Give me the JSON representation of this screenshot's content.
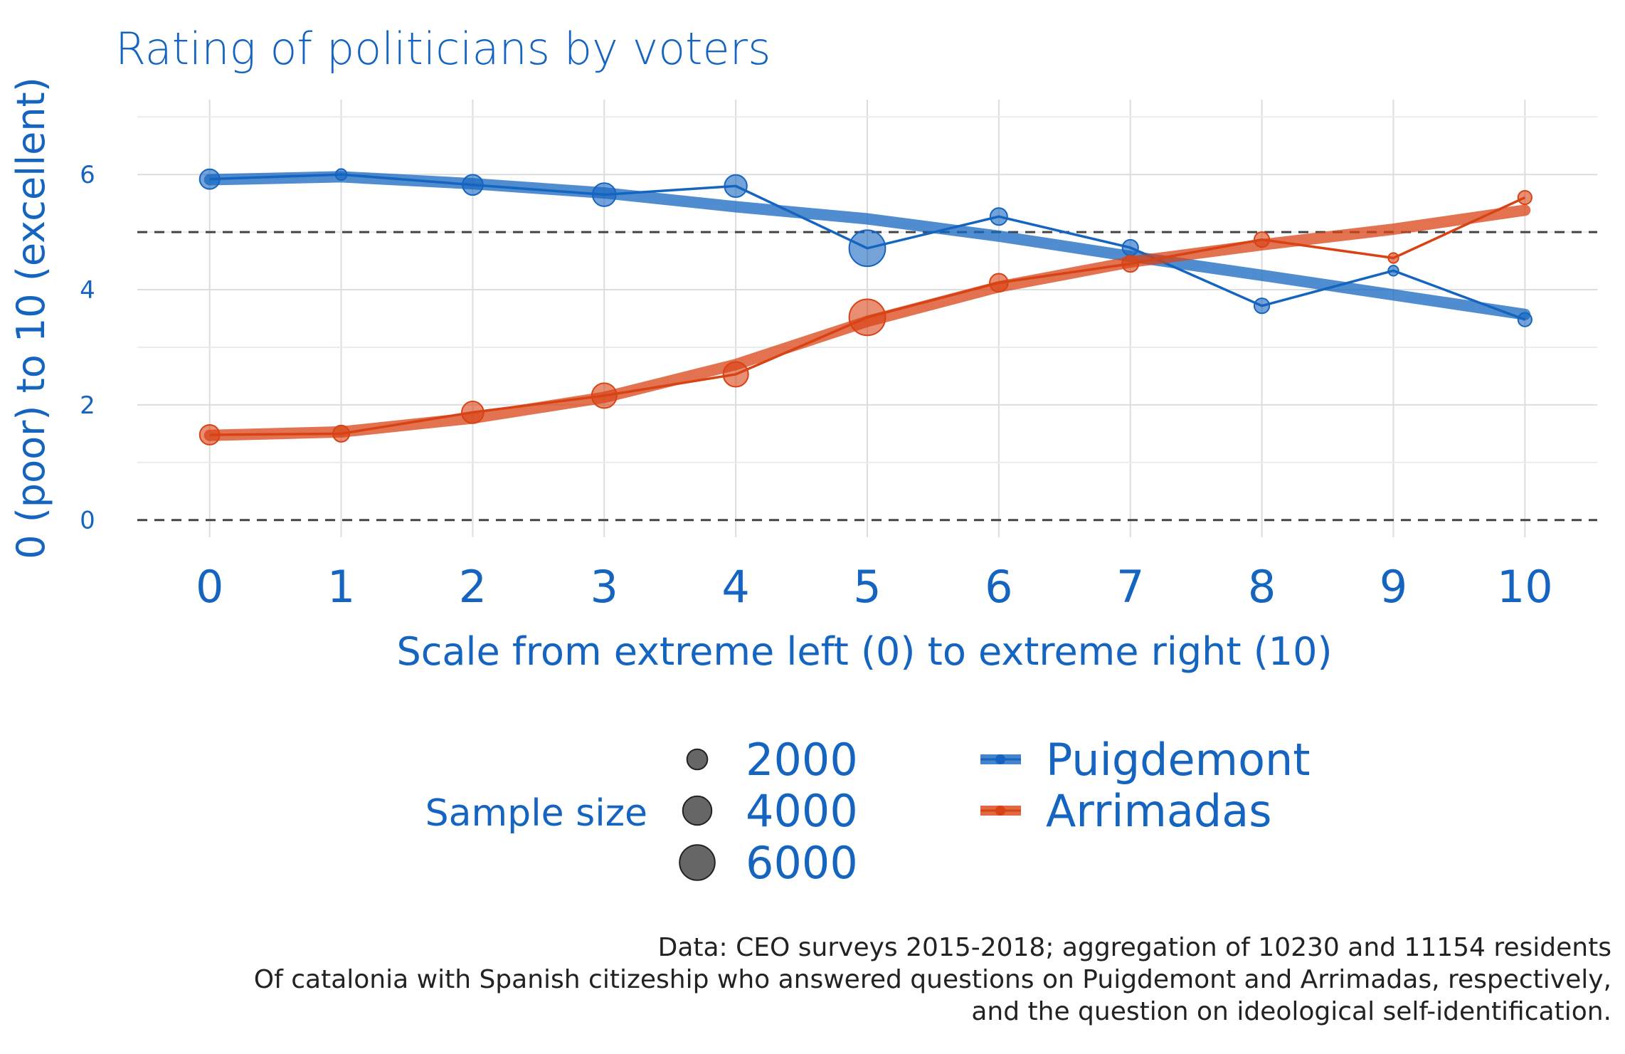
{
  "chart_data": {
    "type": "line",
    "title": "Rating of politicians by voters",
    "xlabel": "Scale from extreme left (0) to extreme right (10)",
    "ylabel": "0 (poor) to 10 (excellent)",
    "xlim": [
      -0.55,
      10.55
    ],
    "ylim": [
      -0.3,
      7.3
    ],
    "x_ticks": [
      "0",
      "1",
      "2",
      "3",
      "4",
      "5",
      "6",
      "7",
      "8",
      "9",
      "10"
    ],
    "y_ticks": [
      "0",
      "2",
      "4",
      "6"
    ],
    "reference_lines": [
      0,
      5
    ],
    "grid": true,
    "x": [
      0,
      1,
      2,
      3,
      4,
      5,
      6,
      7,
      8,
      9,
      10
    ],
    "series": [
      {
        "name": "Puigdemont",
        "color": "#1565C0",
        "values": [
          5.92,
          6.0,
          5.82,
          5.65,
          5.8,
          4.72,
          5.27,
          4.73,
          3.72,
          4.33,
          3.48
        ],
        "trend": [
          5.91,
          5.96,
          5.84,
          5.68,
          5.44,
          5.23,
          4.93,
          4.58,
          4.25,
          3.91,
          3.57
        ],
        "sample_size": [
          1900,
          600,
          2000,
          2600,
          2400,
          6300,
          1400,
          1200,
          1100,
          500,
          900
        ]
      },
      {
        "name": "Arrimadas",
        "color": "#D84315",
        "values": [
          1.48,
          1.5,
          1.87,
          2.16,
          2.53,
          3.52,
          4.12,
          4.45,
          4.87,
          4.55,
          5.6
        ],
        "trend": [
          1.47,
          1.53,
          1.77,
          2.13,
          2.7,
          3.45,
          4.05,
          4.48,
          4.78,
          5.05,
          5.38
        ],
        "sample_size": [
          1900,
          1300,
          2300,
          3000,
          3000,
          6300,
          1600,
          1300,
          1100,
          500,
          900
        ]
      }
    ],
    "legend": {
      "placement": "bottom",
      "size_title": "Sample size",
      "size_breaks": [
        {
          "value": 2000,
          "label": "2000"
        },
        {
          "value": 4000,
          "label": "4000"
        },
        {
          "value": 6000,
          "label": "6000"
        }
      ],
      "color_entries": [
        "Puigdemont",
        "Arrimadas"
      ]
    },
    "caption": [
      "Data: CEO surveys 2015-2018; aggregation of 10230 and 11154 residents",
      "Of catalonia with Spanish citizeship who answered questions on Puigdemont and Arrimadas, respectively,",
      "and the question on ideological self-identification."
    ]
  }
}
